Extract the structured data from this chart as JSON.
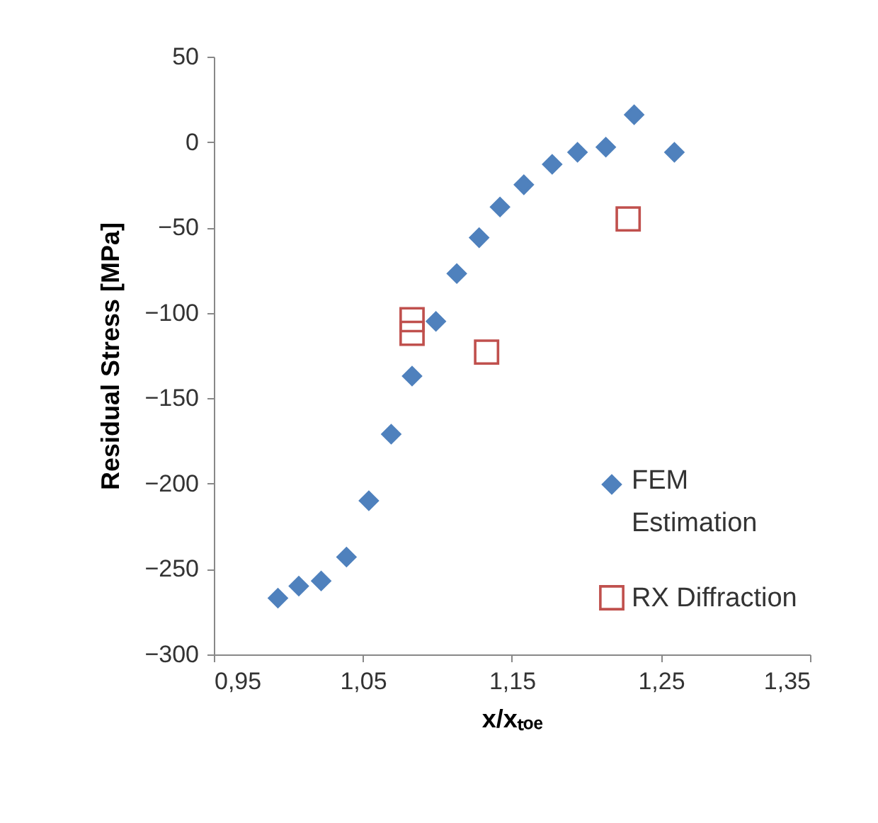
{
  "chart_data": {
    "type": "scatter",
    "xlabel": "x/xₜₒₑ",
    "ylabel": "Residual Stress [MPa]",
    "xlim": [
      0.95,
      1.35
    ],
    "xticks": [
      {
        "value": 0.95,
        "label": "0,95"
      },
      {
        "value": 1.05,
        "label": "1,05"
      },
      {
        "value": 1.15,
        "label": "1,15"
      },
      {
        "value": 1.25,
        "label": "1,25"
      },
      {
        "value": 1.35,
        "label": "1,35"
      }
    ],
    "ylim": [
      -300,
      50
    ],
    "yticks": [
      -300,
      -250,
      -200,
      -150,
      -100,
      -50,
      0,
      50
    ],
    "grid": false,
    "legend": "bottom right",
    "series": [
      {
        "name": "FEM Estimation",
        "color": "#4f81bd",
        "marker": "diamond",
        "x": [
          0.993,
          1.007,
          1.022,
          1.039,
          1.054,
          1.069,
          1.083,
          1.099,
          1.113,
          1.128,
          1.142,
          1.158,
          1.177,
          1.194,
          1.213,
          1.232,
          1.259
        ],
        "values": [
          -267,
          -260,
          -257,
          -243,
          -210,
          -171,
          -137,
          -105,
          -77,
          -56,
          -38,
          -25,
          -13,
          -6,
          -3,
          16,
          -6
        ]
      },
      {
        "name": "RX Diffraction",
        "color": "#c0504d",
        "marker": "square",
        "x": [
          1.083,
          1.083,
          1.133,
          1.228
        ],
        "values": [
          -104,
          -112,
          -123,
          -45
        ]
      }
    ]
  }
}
